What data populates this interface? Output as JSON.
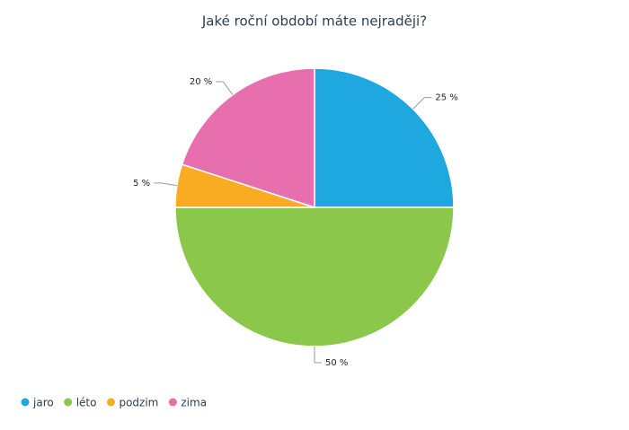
{
  "chart_data": {
    "type": "pie",
    "title": "Jaké roční období máte nejraději?",
    "categories": [
      "jaro",
      "léto",
      "podzim",
      "zima"
    ],
    "values": [
      25,
      50,
      5,
      20
    ],
    "value_labels": [
      "25 %",
      "50 %",
      "5 %",
      "20 %"
    ],
    "colors": [
      "#1fa8e0",
      "#8bc74a",
      "#f9ab22",
      "#e76fae"
    ],
    "legend": "bottom-left"
  }
}
